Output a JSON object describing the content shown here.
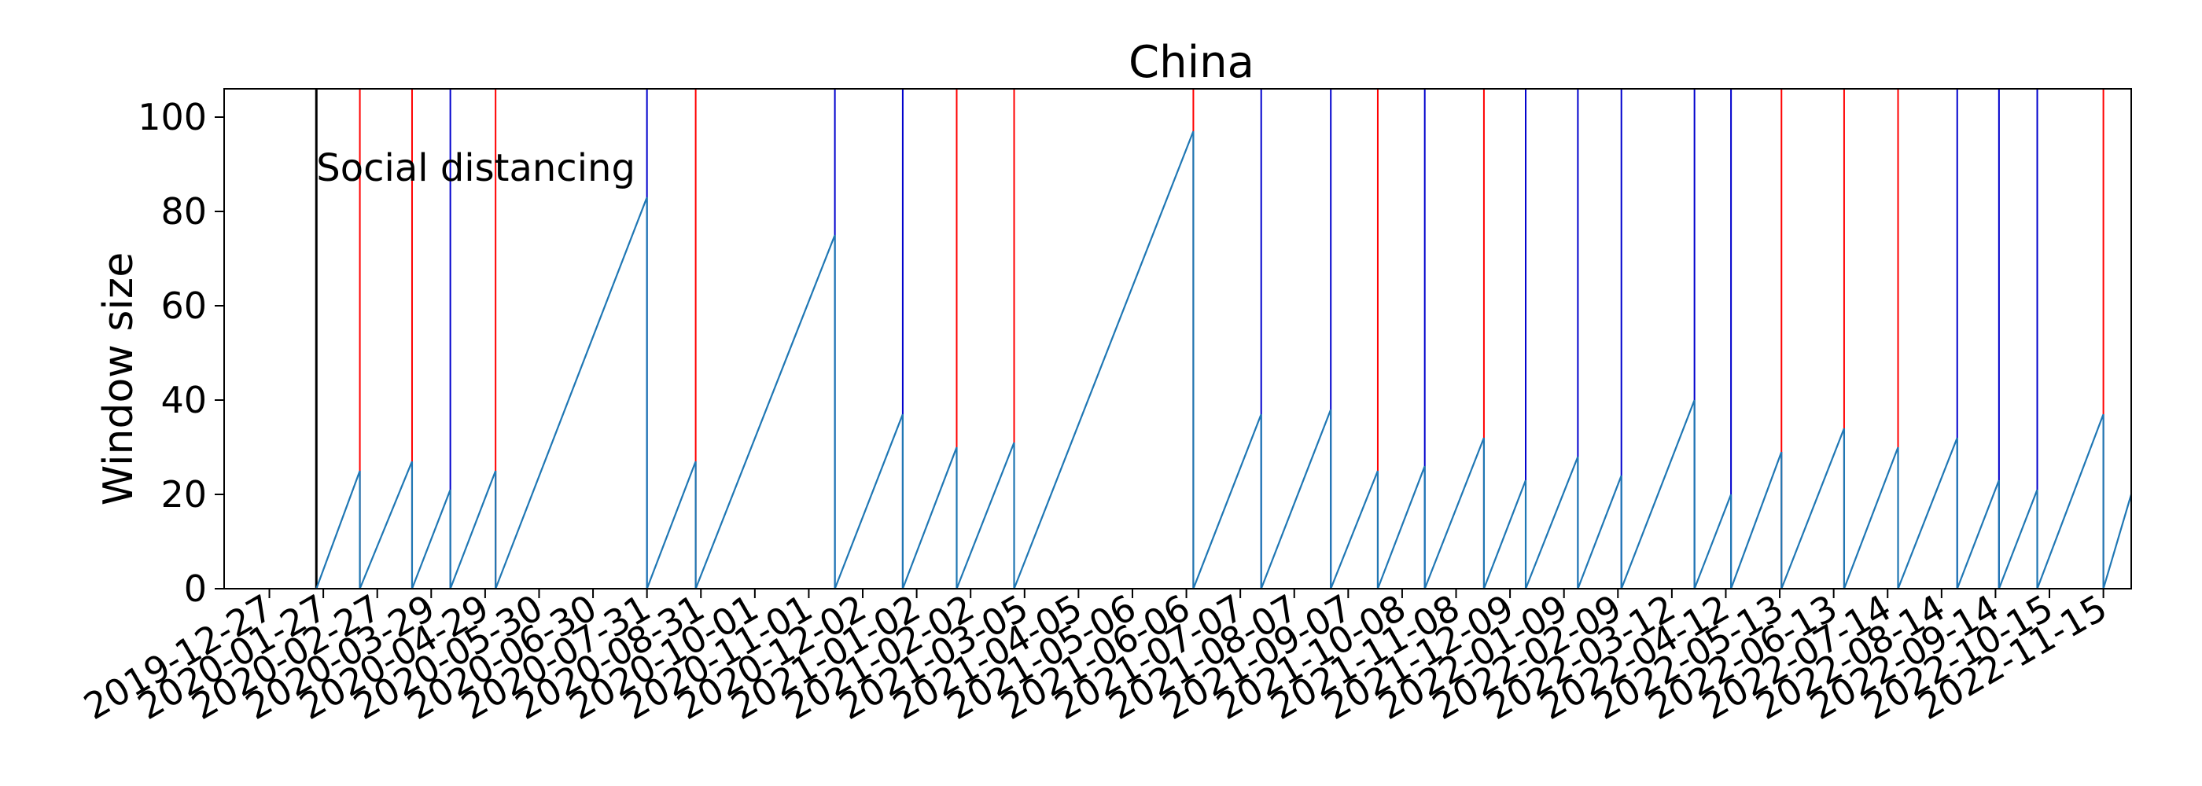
{
  "chart_data": {
    "type": "line",
    "title": "China",
    "xlabel": "",
    "ylabel": "Window size",
    "ylim": [
      0,
      106
    ],
    "xlim": [
      "2019-12-01",
      "2022-12-01"
    ],
    "grid": false,
    "legend": false,
    "colors": {
      "series": "#1f77b4",
      "red_marker": "#ff0000",
      "blue_marker": "#0000cd",
      "black_marker": "#000000",
      "axes": "#000000"
    },
    "x_ticks": [
      "2019-12-27",
      "2020-01-27",
      "2020-02-27",
      "2020-03-29",
      "2020-04-29",
      "2020-05-30",
      "2020-06-30",
      "2020-07-31",
      "2020-08-31",
      "2020-10-01",
      "2020-11-01",
      "2020-12-02",
      "2021-01-02",
      "2021-02-02",
      "2021-03-05",
      "2021-04-05",
      "2021-05-06",
      "2021-06-06",
      "2021-07-07",
      "2021-08-07",
      "2021-09-07",
      "2021-10-08",
      "2021-11-08",
      "2021-12-09",
      "2022-01-09",
      "2022-02-09",
      "2022-03-12",
      "2022-04-12",
      "2022-05-13",
      "2022-06-13",
      "2022-07-14",
      "2022-08-14",
      "2022-09-14",
      "2022-10-15",
      "2022-11-15"
    ],
    "y_ticks": [
      0,
      20,
      40,
      60,
      80,
      100
    ],
    "series": [
      {
        "segments": [
          {
            "start": "2020-01-23",
            "end": "2020-02-17",
            "peak": 25
          },
          {
            "start": "2020-02-17",
            "end": "2020-03-18",
            "peak": 27
          },
          {
            "start": "2020-03-18",
            "end": "2020-04-09",
            "peak": 21
          },
          {
            "start": "2020-04-09",
            "end": "2020-05-05",
            "peak": 25
          },
          {
            "start": "2020-05-05",
            "end": "2020-07-31",
            "peak": 83
          },
          {
            "start": "2020-07-31",
            "end": "2020-08-28",
            "peak": 27
          },
          {
            "start": "2020-08-28",
            "end": "2020-11-16",
            "peak": 75
          },
          {
            "start": "2020-11-16",
            "end": "2020-12-25",
            "peak": 37
          },
          {
            "start": "2020-12-25",
            "end": "2021-01-25",
            "peak": 30
          },
          {
            "start": "2021-01-25",
            "end": "2021-02-27",
            "peak": 31
          },
          {
            "start": "2021-02-27",
            "end": "2021-06-10",
            "peak": 97
          },
          {
            "start": "2021-06-10",
            "end": "2021-07-19",
            "peak": 37
          },
          {
            "start": "2021-07-19",
            "end": "2021-08-28",
            "peak": 38
          },
          {
            "start": "2021-08-28",
            "end": "2021-09-24",
            "peak": 25
          },
          {
            "start": "2021-09-24",
            "end": "2021-10-21",
            "peak": 26
          },
          {
            "start": "2021-10-21",
            "end": "2021-11-24",
            "peak": 32
          },
          {
            "start": "2021-11-24",
            "end": "2021-12-18",
            "peak": 23
          },
          {
            "start": "2021-12-18",
            "end": "2022-01-17",
            "peak": 28
          },
          {
            "start": "2022-01-17",
            "end": "2022-02-11",
            "peak": 24
          },
          {
            "start": "2022-02-11",
            "end": "2022-03-25",
            "peak": 40
          },
          {
            "start": "2022-03-25",
            "end": "2022-04-15",
            "peak": 20
          },
          {
            "start": "2022-04-15",
            "end": "2022-05-14",
            "peak": 29
          },
          {
            "start": "2022-05-14",
            "end": "2022-06-19",
            "peak": 34
          },
          {
            "start": "2022-06-19",
            "end": "2022-07-20",
            "peak": 30
          },
          {
            "start": "2022-07-20",
            "end": "2022-08-23",
            "peak": 32
          },
          {
            "start": "2022-08-23",
            "end": "2022-09-16",
            "peak": 23
          },
          {
            "start": "2022-09-16",
            "end": "2022-10-08",
            "peak": 21
          },
          {
            "start": "2022-10-08",
            "end": "2022-11-15",
            "peak": 37
          },
          {
            "start": "2022-11-15",
            "end": "2022-12-06",
            "peak": 20,
            "open_end": true
          }
        ]
      }
    ],
    "vertical_markers": [
      {
        "date": "2020-01-23",
        "color": "black",
        "label": "Social distancing"
      },
      {
        "date": "2020-02-17",
        "color": "red"
      },
      {
        "date": "2020-03-18",
        "color": "red"
      },
      {
        "date": "2020-04-09",
        "color": "blue"
      },
      {
        "date": "2020-05-05",
        "color": "red"
      },
      {
        "date": "2020-07-31",
        "color": "blue"
      },
      {
        "date": "2020-08-28",
        "color": "red"
      },
      {
        "date": "2020-11-16",
        "color": "blue"
      },
      {
        "date": "2020-12-25",
        "color": "blue"
      },
      {
        "date": "2021-01-25",
        "color": "red"
      },
      {
        "date": "2021-02-27",
        "color": "red"
      },
      {
        "date": "2021-06-10",
        "color": "red"
      },
      {
        "date": "2021-07-19",
        "color": "blue"
      },
      {
        "date": "2021-08-28",
        "color": "blue"
      },
      {
        "date": "2021-09-24",
        "color": "red"
      },
      {
        "date": "2021-10-21",
        "color": "blue"
      },
      {
        "date": "2021-11-24",
        "color": "red"
      },
      {
        "date": "2021-12-18",
        "color": "blue"
      },
      {
        "date": "2022-01-17",
        "color": "blue"
      },
      {
        "date": "2022-02-11",
        "color": "blue"
      },
      {
        "date": "2022-03-25",
        "color": "blue"
      },
      {
        "date": "2022-04-15",
        "color": "blue"
      },
      {
        "date": "2022-05-14",
        "color": "red"
      },
      {
        "date": "2022-06-19",
        "color": "red"
      },
      {
        "date": "2022-07-20",
        "color": "red"
      },
      {
        "date": "2022-08-23",
        "color": "blue"
      },
      {
        "date": "2022-09-16",
        "color": "blue"
      },
      {
        "date": "2022-10-08",
        "color": "blue"
      },
      {
        "date": "2022-11-15",
        "color": "red"
      }
    ]
  }
}
